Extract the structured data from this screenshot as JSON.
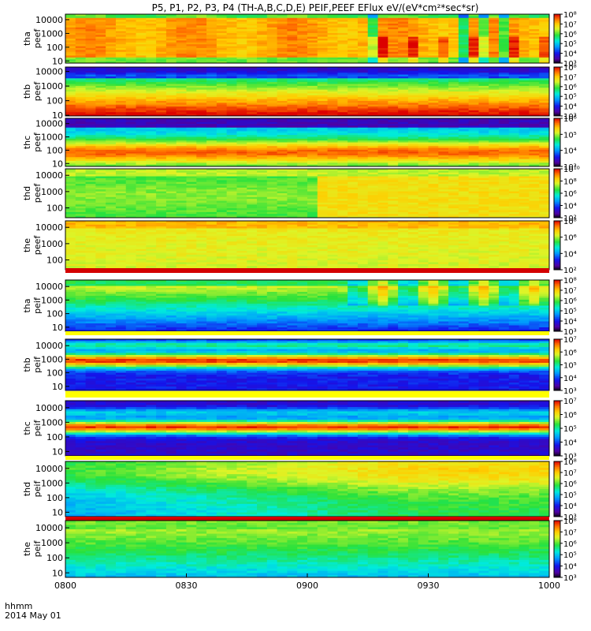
{
  "figure": {
    "title": "P5, P1, P2, P3, P4 (TH-A,B,C,D,E) PEIF,PEEF EFlux eV/(eV*cm²*sec*sr)",
    "time_axis_title": "hhmm",
    "date_label": "2014 May 01"
  },
  "chart_data": {
    "type": "heatmap",
    "x": {
      "tick_labels": [
        "0800",
        "0830",
        "0900",
        "0930",
        "1000"
      ],
      "range": [
        "0800",
        "1000"
      ]
    },
    "panels": [
      {
        "probe": "tha",
        "product": "peef",
        "yticks": [
          "10",
          "100",
          "1000",
          "10000"
        ],
        "y_range": [
          7,
          25000
        ],
        "cticks": [
          "10³",
          "10⁴",
          "10⁵",
          "10⁶",
          "10⁷",
          "10⁸"
        ],
        "c_exp": [
          3,
          8
        ]
      },
      {
        "probe": "thb",
        "product": "peef",
        "yticks": [
          "10",
          "100",
          "1000",
          "10000"
        ],
        "y_range": [
          9,
          20000
        ],
        "cticks": [
          "10³",
          "10⁴",
          "10⁵",
          "10⁶",
          "10⁷",
          "10⁸"
        ],
        "c_exp": [
          3,
          8
        ]
      },
      {
        "probe": "thc",
        "product": "peef",
        "yticks": [
          "10",
          "100",
          "1000",
          "10000"
        ],
        "y_range": [
          6,
          25000
        ],
        "cticks": [
          "10³",
          "10⁴",
          "10⁵",
          "10⁶"
        ],
        "c_exp": [
          3,
          6
        ]
      },
      {
        "probe": "thd",
        "product": "peef",
        "yticks": [
          "100",
          "1000",
          "10000"
        ],
        "y_range": [
          25,
          25000
        ],
        "cticks": [
          "10²",
          "10⁴",
          "10⁶",
          "10⁸",
          "10¹⁰"
        ],
        "c_exp": [
          2,
          10
        ]
      },
      {
        "probe": "the",
        "product": "peef",
        "yticks": [
          "100",
          "1000",
          "10000"
        ],
        "y_range": [
          25,
          25000
        ],
        "cticks": [
          "10²",
          "10⁴",
          "10⁶",
          "10⁸"
        ],
        "c_exp": [
          2,
          8
        ]
      },
      {
        "probe": "tha",
        "product": "peif",
        "yticks": [
          "10",
          "100",
          "1000",
          "10000"
        ],
        "y_range": [
          5,
          30000
        ],
        "cticks": [
          "10³",
          "10⁴",
          "10⁵",
          "10⁶",
          "10⁷",
          "10⁸"
        ],
        "c_exp": [
          3,
          8
        ]
      },
      {
        "probe": "thb",
        "product": "peif",
        "yticks": [
          "10",
          "100",
          "1000",
          "10000"
        ],
        "y_range": [
          5,
          30000
        ],
        "cticks": [
          "10³",
          "10⁴",
          "10⁵",
          "10⁶",
          "10⁷"
        ],
        "c_exp": [
          3,
          7
        ]
      },
      {
        "probe": "thc",
        "product": "peif",
        "yticks": [
          "10",
          "100",
          "1000",
          "10000"
        ],
        "y_range": [
          5,
          30000
        ],
        "cticks": [
          "10³",
          "10⁴",
          "10⁵",
          "10⁶",
          "10⁷"
        ],
        "c_exp": [
          3,
          7
        ]
      },
      {
        "probe": "thd",
        "product": "peif",
        "yticks": [
          "10",
          "100",
          "1000",
          "10000"
        ],
        "y_range": [
          5,
          30000
        ],
        "cticks": [
          "10³",
          "10⁴",
          "10⁵",
          "10⁶",
          "10⁷",
          "10⁸"
        ],
        "c_exp": [
          3,
          8
        ]
      },
      {
        "probe": "the",
        "product": "peif",
        "yticks": [
          "10",
          "100",
          "1000",
          "10000"
        ],
        "y_range": [
          5,
          30000
        ],
        "cticks": [
          "10³",
          "10⁴",
          "10⁵",
          "10⁶",
          "10⁷",
          "10⁸"
        ],
        "c_exp": [
          3,
          8
        ]
      }
    ]
  }
}
